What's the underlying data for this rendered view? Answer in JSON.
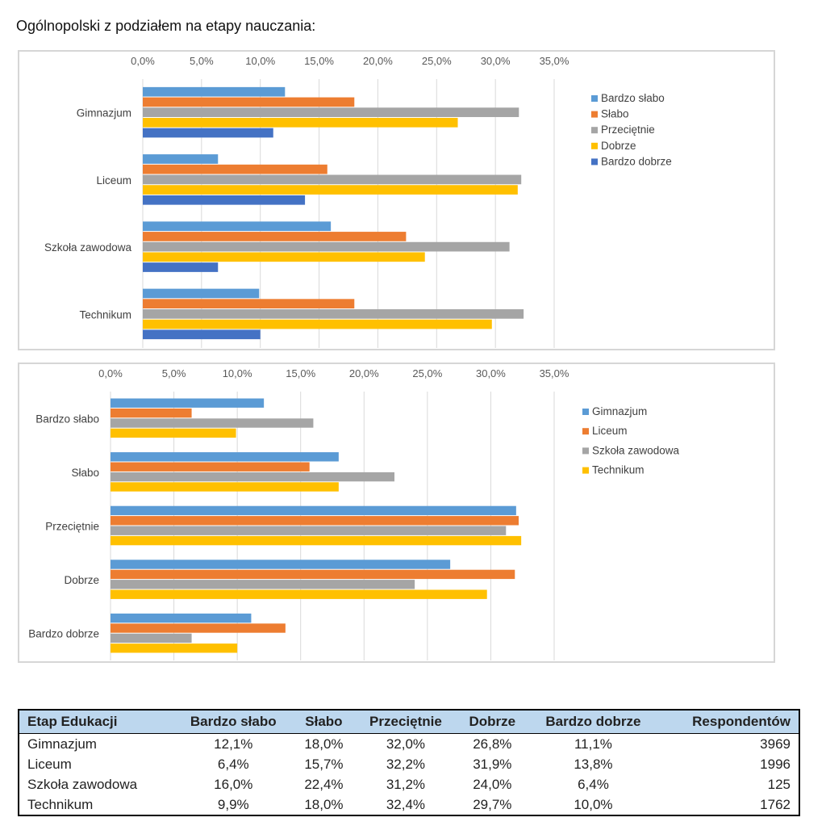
{
  "heading": "Ogólnopolski z podziałem na etapy nauczania:",
  "chart_data": [
    {
      "type": "bar",
      "orientation": "horizontal",
      "categories": [
        "Gimnazjum",
        "Liceum",
        "Szkoła zawodowa",
        "Technikum"
      ],
      "series": [
        {
          "name": "Bardzo słabo",
          "color": "#5b9bd5",
          "values": [
            12.1,
            6.4,
            16.0,
            9.9
          ]
        },
        {
          "name": "Słabo",
          "color": "#ed7d31",
          "values": [
            18.0,
            15.7,
            22.4,
            18.0
          ]
        },
        {
          "name": "Przeciętnie",
          "color": "#a5a5a5",
          "values": [
            32.0,
            32.2,
            31.2,
            32.4
          ]
        },
        {
          "name": "Dobrze",
          "color": "#ffc000",
          "values": [
            26.8,
            31.9,
            24.0,
            29.7
          ]
        },
        {
          "name": "Bardzo dobrze",
          "color": "#4472c4",
          "values": [
            11.1,
            13.8,
            6.4,
            10.0
          ]
        }
      ],
      "xlim": [
        0,
        35
      ],
      "ticks": [
        "0,0%",
        "5,0%",
        "10,0%",
        "15,0%",
        "20,0%",
        "25,0%",
        "30,0%",
        "35,0%"
      ],
      "legend": "right",
      "grid": true
    },
    {
      "type": "bar",
      "orientation": "horizontal",
      "categories": [
        "Bardzo słabo",
        "Słabo",
        "Przeciętnie",
        "Dobrze",
        "Bardzo dobrze"
      ],
      "series": [
        {
          "name": "Gimnazjum",
          "color": "#5b9bd5",
          "values": [
            12.1,
            18.0,
            32.0,
            26.8,
            11.1
          ]
        },
        {
          "name": "Liceum",
          "color": "#ed7d31",
          "values": [
            6.4,
            15.7,
            32.2,
            31.9,
            13.8
          ]
        },
        {
          "name": "Szkoła zawodowa",
          "color": "#a5a5a5",
          "values": [
            16.0,
            22.4,
            31.2,
            24.0,
            6.4
          ]
        },
        {
          "name": "Technikum",
          "color": "#ffc000",
          "values": [
            9.9,
            18.0,
            32.4,
            29.7,
            10.0
          ]
        }
      ],
      "xlim": [
        0,
        35
      ],
      "ticks": [
        "0,0%",
        "5,0%",
        "10,0%",
        "15,0%",
        "20,0%",
        "25,0%",
        "30,0%",
        "35,0%"
      ],
      "legend": "right",
      "grid": true
    }
  ],
  "table": {
    "headers": [
      "Etap Edukacji",
      "Bardzo słabo",
      "Słabo",
      "Przeciętnie",
      "Dobrze",
      "Bardzo dobrze",
      "Respondentów"
    ],
    "rows": [
      [
        "Gimnazjum",
        "12,1%",
        "18,0%",
        "32,0%",
        "26,8%",
        "11,1%",
        "3969"
      ],
      [
        "Liceum",
        "6,4%",
        "15,7%",
        "32,2%",
        "31,9%",
        "13,8%",
        "1996"
      ],
      [
        "Szkoła zawodowa",
        "16,0%",
        "22,4%",
        "31,2%",
        "24,0%",
        "6,4%",
        "125"
      ],
      [
        "Technikum",
        "9,9%",
        "18,0%",
        "32,4%",
        "29,7%",
        "10,0%",
        "1762"
      ]
    ]
  }
}
